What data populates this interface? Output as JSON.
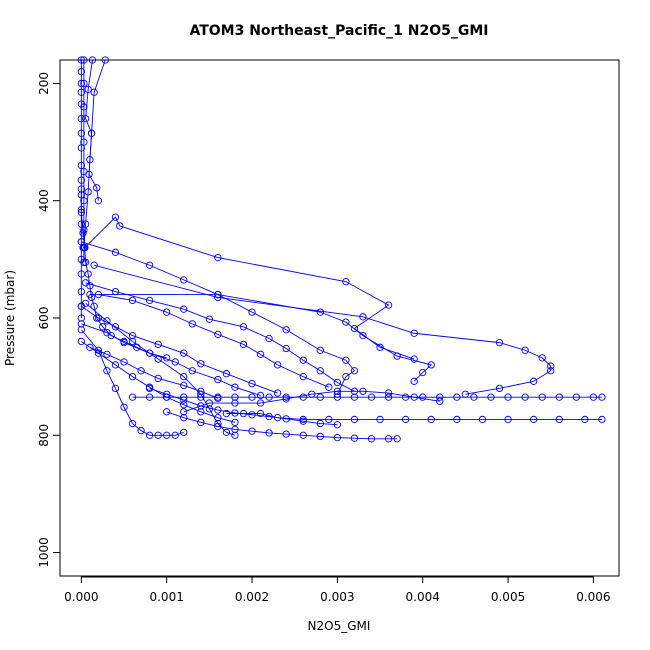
{
  "chart_data": {
    "type": "scatter",
    "title": "ATOM3 Northeast_Pacific_1 N2O5_GMI",
    "xlabel": "N2O5_GMI",
    "ylabel": "Pressure (mbar)",
    "xlim": [
      -0.00025,
      0.0063
    ],
    "ylim": [
      1040,
      160
    ],
    "y_reversed": true,
    "x_ticks": [
      0,
      0.001,
      0.002,
      0.003,
      0.004,
      0.005,
      0.006
    ],
    "x_tick_labels": [
      "0.000",
      "0.001",
      "0.002",
      "0.003",
      "0.004",
      "0.005",
      "0.006"
    ],
    "y_ticks": [
      200,
      400,
      600,
      800,
      1000
    ],
    "y_tick_labels": [
      "200",
      "400",
      "600",
      "800",
      "1000"
    ],
    "grid": false,
    "legend": "none",
    "color": "#0000ff",
    "marker": "open-circle",
    "series": [
      {
        "points": [
          [
            0.0,
            160
          ],
          [
            0.0,
            180
          ],
          [
            0.0,
            200
          ],
          [
            0.0,
            215
          ],
          [
            0.0,
            235
          ],
          [
            0.0,
            260
          ],
          [
            0.0,
            285
          ],
          [
            0.0,
            310
          ],
          [
            0.0,
            340
          ],
          [
            0.0,
            365
          ],
          [
            0.0,
            390
          ],
          [
            0.0,
            415
          ],
          [
            0.0,
            440
          ],
          [
            0.0,
            470
          ],
          [
            0.0,
            500
          ],
          [
            0.0,
            525
          ],
          [
            0.0,
            555
          ],
          [
            0.0,
            580
          ],
          [
            0.0,
            600
          ]
        ]
      },
      {
        "points": [
          [
            3e-05,
            160
          ],
          [
            3e-05,
            200
          ],
          [
            3e-05,
            240
          ],
          [
            3e-05,
            300
          ],
          [
            3e-05,
            350
          ],
          [
            3e-05,
            400
          ],
          [
            3e-05,
            450
          ],
          [
            3e-05,
            505
          ]
        ]
      },
      {
        "points": [
          [
            0.00013,
            160
          ],
          [
            8e-05,
            210
          ],
          [
            5e-05,
            260
          ],
          [
            0.00012,
            285
          ],
          [
            0.0001,
            330
          ],
          [
            8e-05,
            385
          ],
          [
            5e-05,
            440
          ],
          [
            3e-05,
            480
          ]
        ]
      },
      {
        "points": [
          [
            0.00028,
            160
          ],
          [
            0.00015,
            215
          ],
          [
            0.00012,
            285
          ],
          [
            9e-05,
            355
          ],
          [
            0.00018,
            378
          ],
          [
            0.0002,
            400
          ]
        ]
      },
      {
        "points": [
          [
            0.0,
            380
          ],
          [
            0.0,
            420
          ],
          [
            2e-05,
            455
          ],
          [
            4e-05,
            480
          ],
          [
            5e-05,
            505
          ],
          [
            8e-05,
            525
          ],
          [
            0.0001,
            545
          ],
          [
            0.00012,
            565
          ],
          [
            0.00015,
            580
          ],
          [
            0.00018,
            600
          ],
          [
            0.00025,
            615
          ],
          [
            0.00035,
            630
          ],
          [
            0.0005,
            640
          ],
          [
            0.00065,
            650
          ],
          [
            0.0008,
            660
          ],
          [
            0.001,
            668
          ]
        ]
      },
      {
        "points": [
          [
            0.0,
            470
          ],
          [
            0.0004,
            488
          ],
          [
            0.0008,
            510
          ],
          [
            0.0012,
            535
          ],
          [
            0.0016,
            560
          ],
          [
            0.002,
            590
          ],
          [
            0.0024,
            620
          ],
          [
            0.0028,
            655
          ],
          [
            0.0031,
            672
          ],
          [
            0.0032,
            690
          ],
          [
            0.0031,
            700
          ],
          [
            0.003,
            730
          ]
        ]
      },
      {
        "points": [
          [
            2e-05,
            480
          ],
          [
            4e-05,
            480
          ],
          [
            0.0004,
            428
          ],
          [
            0.00045,
            443
          ],
          [
            0.0016,
            497
          ],
          [
            0.0031,
            538
          ],
          [
            0.0036,
            578
          ],
          [
            0.0032,
            618
          ],
          [
            0.0035,
            650
          ],
          [
            0.0039,
            670
          ]
        ]
      },
      {
        "points": [
          [
            0.0001,
            560
          ],
          [
            0.0016,
            560
          ],
          [
            0.0028,
            590
          ],
          [
            0.0031,
            607
          ],
          [
            0.0033,
            630
          ],
          [
            0.0037,
            665
          ],
          [
            0.0041,
            680
          ],
          [
            0.004,
            693
          ],
          [
            0.0039,
            708
          ]
        ]
      },
      {
        "points": [
          [
            0.00015,
            510
          ],
          [
            0.0016,
            565
          ],
          [
            0.0033,
            598
          ],
          [
            0.0039,
            626
          ],
          [
            0.0049,
            642
          ],
          [
            0.0052,
            655
          ],
          [
            0.0054,
            668
          ],
          [
            0.0055,
            682
          ],
          [
            0.0055,
            690
          ],
          [
            0.0053,
            708
          ],
          [
            0.0049,
            720
          ],
          [
            0.0045,
            730
          ]
        ]
      },
      {
        "points": [
          [
            5e-05,
            540
          ],
          [
            0.0004,
            555
          ],
          [
            0.0008,
            570
          ],
          [
            0.0012,
            585
          ],
          [
            0.0015,
            602
          ],
          [
            0.0019,
            615
          ],
          [
            0.0022,
            635
          ],
          [
            0.0024,
            652
          ],
          [
            0.0026,
            672
          ],
          [
            0.0028,
            690
          ],
          [
            0.003,
            710
          ],
          [
            0.0032,
            725
          ]
        ]
      },
      {
        "points": [
          [
            0.0002,
            560
          ],
          [
            0.0006,
            570
          ],
          [
            0.001,
            590
          ],
          [
            0.0013,
            610
          ],
          [
            0.0016,
            628
          ],
          [
            0.0019,
            645
          ],
          [
            0.0021,
            662
          ],
          [
            0.0023,
            680
          ],
          [
            0.0026,
            700
          ],
          [
            0.0029,
            718
          ]
        ]
      },
      {
        "points": [
          [
            0.0,
            580
          ],
          [
            0.0002,
            600
          ],
          [
            0.0004,
            615
          ],
          [
            0.0006,
            630
          ],
          [
            0.0009,
            645
          ],
          [
            0.0012,
            660
          ],
          [
            0.0014,
            678
          ],
          [
            0.0017,
            695
          ],
          [
            0.002,
            712
          ],
          [
            0.0023,
            728
          ]
        ]
      },
      {
        "points": [
          [
            0.0,
            610
          ],
          [
            0.0003,
            625
          ],
          [
            0.0005,
            642
          ],
          [
            0.0008,
            660
          ],
          [
            0.0011,
            675
          ],
          [
            0.0013,
            690
          ],
          [
            0.0016,
            705
          ],
          [
            0.0018,
            718
          ],
          [
            0.0021,
            732
          ]
        ]
      },
      {
        "points": [
          [
            0.0001,
            650
          ],
          [
            0.0003,
            662
          ],
          [
            0.0005,
            675
          ],
          [
            0.0007,
            690
          ],
          [
            0.0009,
            703
          ],
          [
            0.0012,
            715
          ],
          [
            0.0014,
            725
          ],
          [
            0.0016,
            737
          ]
        ]
      },
      {
        "points": [
          [
            0.0,
            640
          ],
          [
            0.0002,
            660
          ],
          [
            0.0004,
            680
          ],
          [
            0.0006,
            700
          ],
          [
            0.0008,
            718
          ],
          [
            0.001,
            735
          ],
          [
            0.0012,
            748
          ],
          [
            0.0014,
            760
          ],
          [
            0.0016,
            770
          ],
          [
            0.0018,
            778
          ]
        ]
      },
      {
        "points": [
          [
            0.0,
            620
          ],
          [
            0.0002,
            655
          ],
          [
            0.0003,
            690
          ],
          [
            0.0004,
            720
          ],
          [
            0.0005,
            752
          ],
          [
            0.0006,
            780
          ],
          [
            0.0007,
            792
          ],
          [
            0.0008,
            800
          ],
          [
            0.0009,
            800
          ],
          [
            0.001,
            800
          ],
          [
            0.0011,
            800
          ],
          [
            0.0012,
            795
          ]
        ]
      },
      {
        "points": [
          [
            5e-05,
            575
          ],
          [
            0.0003,
            605
          ],
          [
            0.0006,
            640
          ],
          [
            0.0009,
            670
          ],
          [
            0.0012,
            700
          ],
          [
            0.0014,
            730
          ],
          [
            0.0015,
            755
          ],
          [
            0.0016,
            780
          ],
          [
            0.0017,
            795
          ],
          [
            0.0018,
            800
          ]
        ]
      },
      {
        "points": [
          [
            0.0006,
            735
          ],
          [
            0.0008,
            735
          ],
          [
            0.001,
            735
          ],
          [
            0.0012,
            735
          ],
          [
            0.0014,
            735
          ],
          [
            0.0016,
            735
          ],
          [
            0.0018,
            735
          ],
          [
            0.002,
            735
          ],
          [
            0.0022,
            735
          ],
          [
            0.0024,
            735
          ],
          [
            0.0026,
            735
          ],
          [
            0.0028,
            735
          ],
          [
            0.003,
            735
          ],
          [
            0.0032,
            735
          ],
          [
            0.0034,
            735
          ],
          [
            0.0036,
            735
          ],
          [
            0.0038,
            735
          ],
          [
            0.004,
            735
          ],
          [
            0.0042,
            735
          ],
          [
            0.0044,
            735
          ],
          [
            0.0046,
            735
          ],
          [
            0.0048,
            735
          ],
          [
            0.005,
            735
          ],
          [
            0.0052,
            735
          ],
          [
            0.0054,
            735
          ],
          [
            0.0056,
            735
          ],
          [
            0.0058,
            735
          ],
          [
            0.006,
            735
          ],
          [
            0.0061,
            735
          ]
        ]
      },
      {
        "points": [
          [
            0.0017,
            763
          ],
          [
            0.0019,
            763
          ],
          [
            0.0021,
            763
          ],
          [
            0.0023,
            770
          ],
          [
            0.0026,
            773
          ],
          [
            0.0029,
            773
          ],
          [
            0.0032,
            773
          ],
          [
            0.0035,
            773
          ],
          [
            0.0038,
            773
          ],
          [
            0.0041,
            773
          ],
          [
            0.0044,
            773
          ],
          [
            0.0047,
            773
          ],
          [
            0.005,
            773
          ],
          [
            0.0053,
            773
          ],
          [
            0.0056,
            773
          ],
          [
            0.0059,
            773
          ],
          [
            0.0061,
            773
          ]
        ]
      },
      {
        "points": [
          [
            0.001,
            760
          ],
          [
            0.0012,
            770
          ],
          [
            0.0014,
            778
          ],
          [
            0.0016,
            785
          ],
          [
            0.0018,
            790
          ],
          [
            0.002,
            793
          ],
          [
            0.0022,
            796
          ],
          [
            0.0024,
            798
          ],
          [
            0.0026,
            800
          ],
          [
            0.0028,
            802
          ],
          [
            0.003,
            804
          ],
          [
            0.0032,
            805
          ],
          [
            0.0034,
            806
          ],
          [
            0.0036,
            806
          ],
          [
            0.0037,
            806
          ]
        ]
      },
      {
        "points": [
          [
            0.0012,
            760
          ],
          [
            0.0015,
            745
          ],
          [
            0.0018,
            745
          ],
          [
            0.0021,
            745
          ],
          [
            0.0024,
            738
          ],
          [
            0.0027,
            730
          ],
          [
            0.003,
            725
          ],
          [
            0.0033,
            725
          ],
          [
            0.0036,
            728
          ],
          [
            0.0039,
            735
          ],
          [
            0.0042,
            742
          ]
        ]
      },
      {
        "points": [
          [
            0.0008,
            720
          ],
          [
            0.001,
            730
          ],
          [
            0.0012,
            740
          ],
          [
            0.0014,
            750
          ],
          [
            0.0016,
            757
          ],
          [
            0.0018,
            762
          ],
          [
            0.002,
            765
          ],
          [
            0.0022,
            768
          ],
          [
            0.0024,
            772
          ],
          [
            0.0026,
            776
          ],
          [
            0.0028,
            780
          ],
          [
            0.003,
            782
          ]
        ]
      }
    ]
  }
}
